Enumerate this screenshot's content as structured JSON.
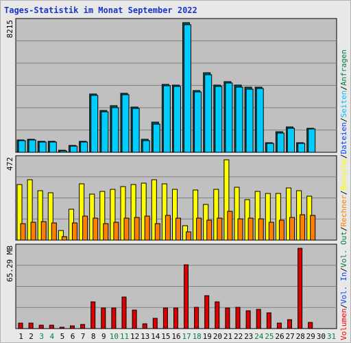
{
  "title": "Tages-Statistik im Monat September 2022",
  "chart_data": [
    {
      "type": "bar",
      "name": "requests-panel",
      "max_label": "8215",
      "ymax": 8215,
      "legend": [
        "Anfragen",
        "Dateien",
        "Seiten"
      ],
      "legend_colors": [
        "#008040",
        "#0040ff",
        "#00c0ff"
      ],
      "series": [
        {
          "name": "Anfragen",
          "values": [
            780,
            840,
            690,
            700,
            130,
            450,
            700,
            3700,
            2660,
            2940,
            3740,
            2880,
            820,
            1900,
            4300,
            4280,
            8215,
            3930,
            5030,
            4260,
            4470,
            4250,
            4120,
            4150,
            630,
            1290,
            1590,
            630,
            1530,
            0
          ]
        },
        {
          "name": "Dateien",
          "values": [
            720,
            780,
            640,
            660,
            100,
            400,
            650,
            3600,
            2560,
            2840,
            3640,
            2780,
            760,
            1800,
            4200,
            4180,
            8100,
            3830,
            4930,
            4160,
            4370,
            4150,
            4020,
            4050,
            580,
            1220,
            1520,
            580,
            1460,
            0
          ]
        }
      ]
    },
    {
      "type": "bar",
      "name": "visits-panel",
      "max_label": "472",
      "ymax": 472,
      "legend": [
        "Besuche",
        "Rechner"
      ],
      "legend_colors": [
        "#ffff00",
        "#ff8000"
      ],
      "series": [
        {
          "name": "Besuche",
          "values": [
            325,
            355,
            290,
            280,
            55,
            180,
            330,
            270,
            285,
            300,
            315,
            325,
            335,
            355,
            330,
            300,
            85,
            295,
            210,
            300,
            472,
            310,
            240,
            285,
            275,
            275,
            305,
            290,
            260,
            0
          ]
        },
        {
          "name": "Rechner",
          "values": [
            95,
            105,
            110,
            100,
            20,
            100,
            140,
            130,
            95,
            105,
            130,
            135,
            140,
            95,
            145,
            130,
            50,
            130,
            115,
            130,
            170,
            125,
            130,
            125,
            105,
            115,
            135,
            150,
            145,
            0
          ]
        }
      ]
    },
    {
      "type": "bar",
      "name": "volume-panel",
      "max_label": "65.29 MB",
      "ymax": 65.29,
      "legend": [
        "Volumen",
        "Vol. In",
        "Vol. Out"
      ],
      "legend_colors": [
        "#ff0000",
        "#0040ff",
        "#008040"
      ],
      "series": [
        {
          "name": "Volumen",
          "values": [
            4.5,
            4.5,
            3.0,
            3.0,
            1.0,
            2.0,
            3.5,
            22.0,
            16.5,
            16.5,
            25.5,
            15.0,
            4.0,
            8.5,
            16.5,
            16.5,
            52.0,
            17.5,
            27.0,
            21.5,
            16.5,
            17.5,
            14.5,
            15.5,
            13.0,
            4.5,
            7.0,
            65.29,
            5.0,
            0
          ]
        }
      ]
    }
  ],
  "x_days": [
    "1",
    "2",
    "3",
    "4",
    "5",
    "6",
    "7",
    "8",
    "9",
    "10",
    "11",
    "12",
    "13",
    "14",
    "15",
    "16",
    "17",
    "18",
    "19",
    "20",
    "21",
    "22",
    "23",
    "24",
    "25",
    "26",
    "27",
    "28",
    "29",
    "30",
    "31"
  ],
  "weekend_days": [
    3,
    4,
    10,
    11,
    17,
    18,
    24,
    25,
    31
  ],
  "colors": {
    "weekday": "#000000",
    "weekend": "#008040",
    "bg": "#c0c0c0",
    "frame": "#e8e8e8",
    "grid": "#808080",
    "title": "#1a33cc"
  }
}
